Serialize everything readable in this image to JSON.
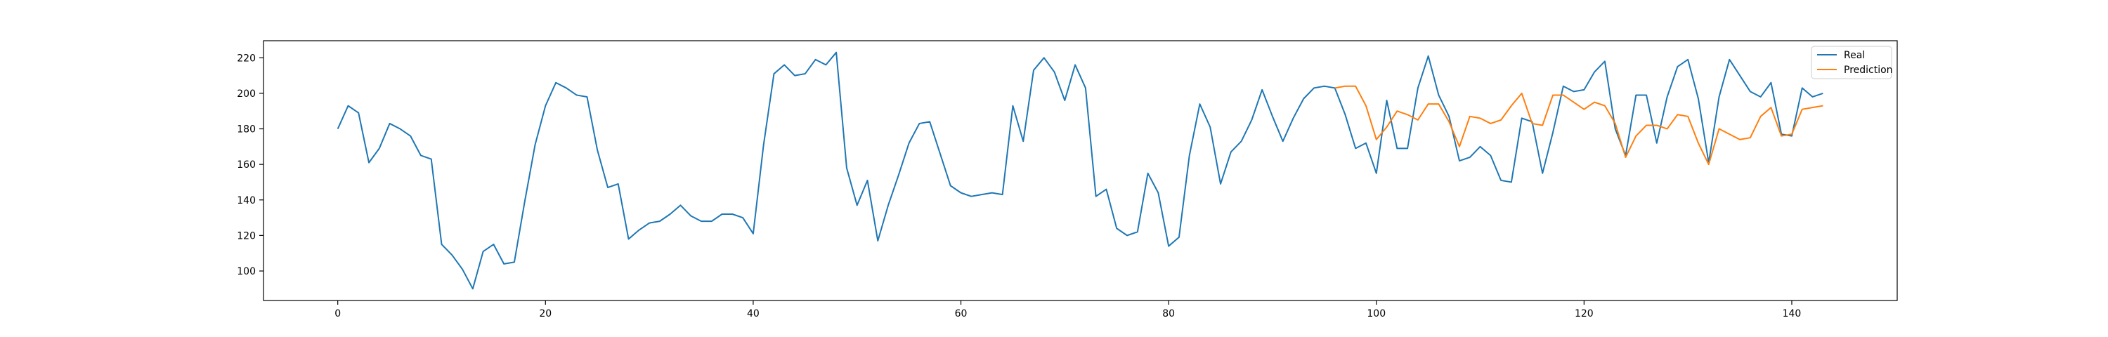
{
  "chart_data": {
    "type": "line",
    "title": "",
    "xlabel": "",
    "ylabel": "",
    "xlim": [
      -7.15,
      150.15
    ],
    "ylim": [
      83.4,
      229.6
    ],
    "xticks": [
      0,
      20,
      40,
      60,
      80,
      100,
      120,
      140
    ],
    "yticks": [
      100,
      120,
      140,
      160,
      180,
      200,
      220
    ],
    "grid": false,
    "legend": "top-right",
    "series": [
      {
        "name": "Real",
        "color": "#1f77b4",
        "x_start": 0,
        "values": [
          180,
          193,
          189,
          161,
          169,
          183,
          180,
          176,
          165,
          163,
          115,
          109,
          101,
          90,
          111,
          115,
          104,
          105,
          139,
          171,
          193,
          206,
          203,
          199,
          198,
          168,
          147,
          149,
          118,
          123,
          127,
          128,
          132,
          137,
          131,
          128,
          128,
          132,
          132,
          130,
          121,
          171,
          211,
          216,
          210,
          211,
          219,
          216,
          223,
          158,
          137,
          151,
          117,
          137,
          154,
          172,
          183,
          184,
          166,
          148,
          144,
          142,
          143,
          144,
          143,
          193,
          173,
          213,
          220,
          212,
          196,
          216,
          203,
          142,
          146,
          124,
          120,
          122,
          155,
          144,
          114,
          119,
          165,
          194,
          181,
          149,
          167,
          173,
          185,
          202,
          187,
          173,
          186,
          197,
          203,
          204,
          203,
          188,
          169,
          172,
          155,
          196,
          169,
          169,
          203,
          221,
          199,
          187,
          162,
          164,
          170,
          165,
          151,
          150,
          186,
          184,
          155,
          178,
          204,
          201,
          202,
          212,
          218,
          180,
          165,
          199,
          199,
          172,
          198,
          215,
          219,
          197,
          161,
          198,
          219,
          210,
          201,
          198,
          206,
          177,
          176,
          203,
          198,
          200
        ]
      },
      {
        "name": "Prediction",
        "color": "#ff7f0e",
        "x_start": 96,
        "values": [
          203,
          204,
          204,
          193,
          174,
          181,
          190,
          188,
          185,
          194,
          194,
          184,
          170,
          187,
          186,
          183,
          185,
          193,
          200,
          183,
          182,
          199,
          199,
          195,
          191,
          195,
          193,
          183,
          164,
          176,
          182,
          182,
          180,
          188,
          187,
          172,
          160,
          180,
          177,
          174,
          175,
          187,
          192,
          176,
          177,
          191,
          192,
          193
        ]
      }
    ]
  }
}
